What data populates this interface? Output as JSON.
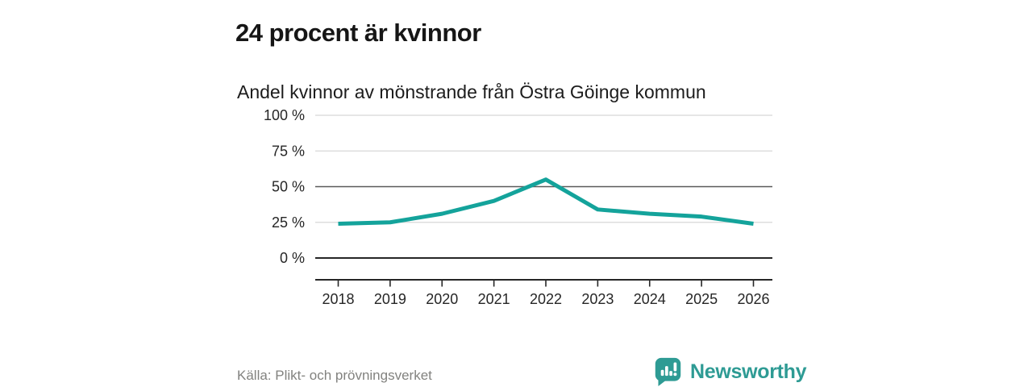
{
  "title": "24 procent är kvinnor",
  "subtitle": "Andel kvinnor av mönstrande från Östra Göinge kommun",
  "source": "Källa: Plikt- och prövningsverket",
  "branding": {
    "name": "Newsworthy",
    "icon": "newsworthy-chart-bubble-icon",
    "color": "#2e9b94"
  },
  "chart_data": {
    "type": "line",
    "title": "24 procent är kvinnor",
    "subtitle": "Andel kvinnor av mönstrande från Östra Göinge kommun",
    "x": [
      2018,
      2019,
      2020,
      2021,
      2022,
      2023,
      2024,
      2025,
      2026
    ],
    "series": [
      {
        "name": "Andel kvinnor av mönstrande",
        "values": [
          24,
          25,
          31,
          40,
          55,
          34,
          31,
          29,
          24
        ],
        "color": "#14a39b"
      }
    ],
    "unit": "%",
    "xlabel": "",
    "ylabel": "",
    "ylim": [
      0,
      100
    ],
    "yticks": [
      0,
      25,
      50,
      75,
      100
    ],
    "ytick_labels": [
      "0 %",
      "25 %",
      "50 %",
      "75 %",
      "100 %"
    ],
    "benchmark_line": 50,
    "grid": true,
    "legend": "none",
    "grid_color_light": "#d8d8d8",
    "grid_color_benchmark": "#5a5a5a",
    "axis_color": "#262626",
    "label_color": "#262626"
  }
}
